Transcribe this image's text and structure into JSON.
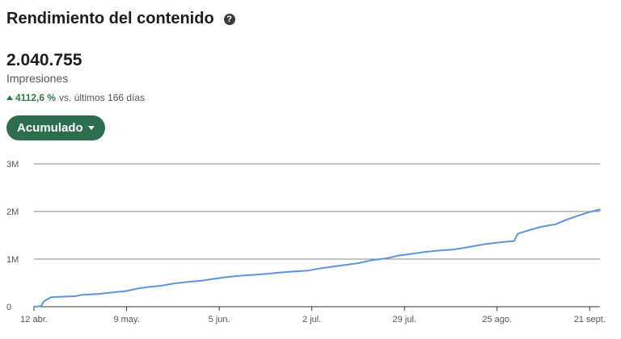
{
  "header": {
    "title": "Rendimiento del contenido",
    "help_icon": "?"
  },
  "metric": {
    "value": "2.040.755",
    "label": "Impresiones",
    "change_icon": "triangle-up-icon",
    "change_value": "4112,6 %",
    "change_text": "vs. últimos 166 días",
    "change_color": "#2b7a4b"
  },
  "dropdown": {
    "label": "Acumulado",
    "color": "#2d6e4e"
  },
  "chart_data": {
    "type": "line",
    "title": "",
    "xlabel": "",
    "ylabel": "",
    "ylim": [
      0,
      3000000
    ],
    "yticks": [
      {
        "value": 0,
        "label": "0"
      },
      {
        "value": 1000000,
        "label": "1M"
      },
      {
        "value": 2000000,
        "label": "2M"
      },
      {
        "value": 3000000,
        "label": "3M"
      }
    ],
    "xlim": [
      "2025-04-12",
      "2025-09-24"
    ],
    "xticks": [
      {
        "date": "2025-04-12",
        "label": "12 abr."
      },
      {
        "date": "2025-05-09",
        "label": "9 may."
      },
      {
        "date": "2025-06-05",
        "label": "5 jun."
      },
      {
        "date": "2025-07-02",
        "label": "2 jul."
      },
      {
        "date": "2025-07-29",
        "label": "29 jul."
      },
      {
        "date": "2025-08-25",
        "label": "25 ago."
      },
      {
        "date": "2025-09-21",
        "label": "21 sept."
      }
    ],
    "grid": true,
    "line_color": "#5b94e0",
    "series": [
      {
        "points": [
          [
            "2025-04-12",
            0
          ],
          [
            "2025-04-14",
            10000
          ],
          [
            "2025-04-15",
            120000
          ],
          [
            "2025-04-17",
            200000
          ],
          [
            "2025-04-20",
            210000
          ],
          [
            "2025-04-24",
            220000
          ],
          [
            "2025-04-26",
            250000
          ],
          [
            "2025-05-01",
            270000
          ],
          [
            "2025-05-05",
            300000
          ],
          [
            "2025-05-09",
            330000
          ],
          [
            "2025-05-12",
            380000
          ],
          [
            "2025-05-15",
            410000
          ],
          [
            "2025-05-19",
            440000
          ],
          [
            "2025-05-23",
            490000
          ],
          [
            "2025-05-27",
            520000
          ],
          [
            "2025-05-31",
            550000
          ],
          [
            "2025-06-03",
            580000
          ],
          [
            "2025-06-07",
            620000
          ],
          [
            "2025-06-11",
            650000
          ],
          [
            "2025-06-15",
            670000
          ],
          [
            "2025-06-19",
            690000
          ],
          [
            "2025-06-23",
            720000
          ],
          [
            "2025-06-27",
            740000
          ],
          [
            "2025-07-01",
            760000
          ],
          [
            "2025-07-04",
            800000
          ],
          [
            "2025-07-08",
            840000
          ],
          [
            "2025-07-12",
            880000
          ],
          [
            "2025-07-16",
            920000
          ],
          [
            "2025-07-19",
            970000
          ],
          [
            "2025-07-22",
            1000000
          ],
          [
            "2025-07-24",
            1020000
          ],
          [
            "2025-07-27",
            1070000
          ],
          [
            "2025-07-31",
            1110000
          ],
          [
            "2025-08-04",
            1150000
          ],
          [
            "2025-08-08",
            1180000
          ],
          [
            "2025-08-12",
            1200000
          ],
          [
            "2025-08-15",
            1230000
          ],
          [
            "2025-08-18",
            1270000
          ],
          [
            "2025-08-22",
            1320000
          ],
          [
            "2025-08-27",
            1360000
          ],
          [
            "2025-08-30",
            1380000
          ],
          [
            "2025-08-31",
            1530000
          ],
          [
            "2025-09-03",
            1600000
          ],
          [
            "2025-09-07",
            1680000
          ],
          [
            "2025-09-11",
            1730000
          ],
          [
            "2025-09-14",
            1820000
          ],
          [
            "2025-09-18",
            1920000
          ],
          [
            "2025-09-21",
            1990000
          ],
          [
            "2025-09-24",
            2040755
          ]
        ]
      }
    ]
  }
}
